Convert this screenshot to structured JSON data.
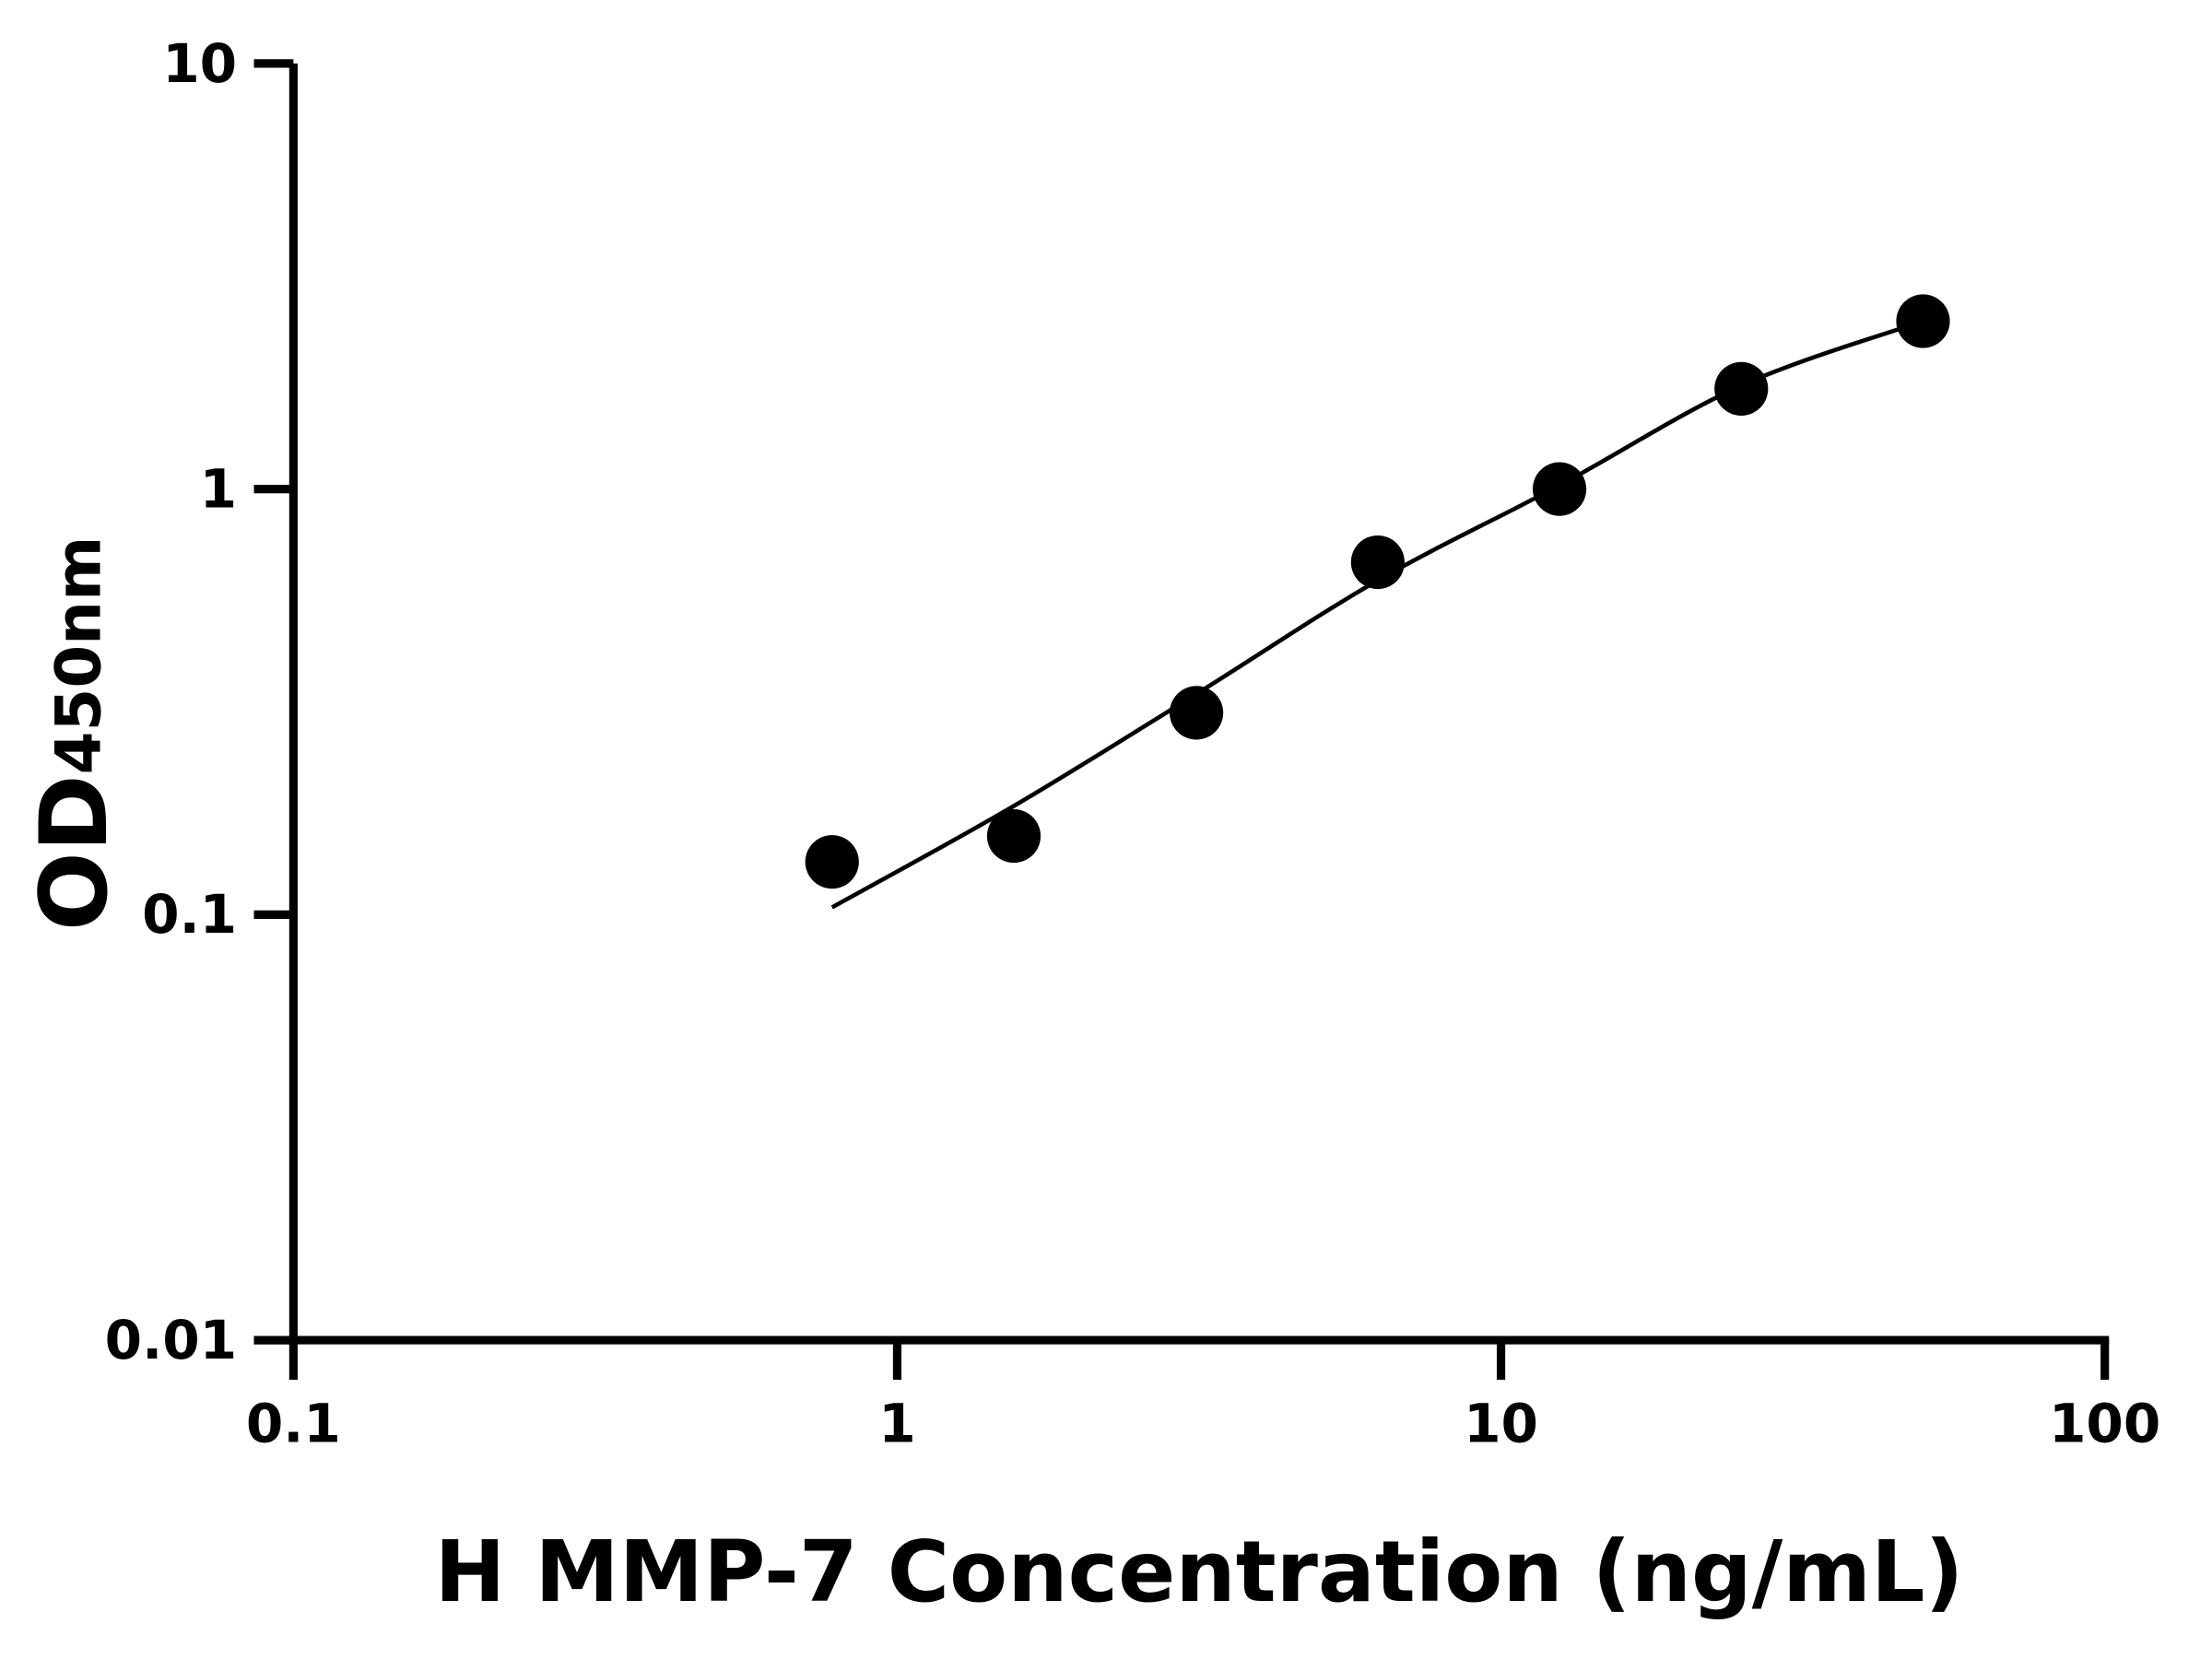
{
  "chart_data": {
    "type": "scatter",
    "title": "",
    "xlabel": "H MMP-7 Concentration (ng/mL)",
    "ylabel": "OD",
    "ylabel_subscript": "450nm",
    "x_scale": "log",
    "y_scale": "log",
    "xlim": [
      0.1,
      100
    ],
    "ylim": [
      0.01,
      10
    ],
    "x_ticks": [
      "0.1",
      "1",
      "10",
      "100"
    ],
    "y_ticks": [
      "0.01",
      "0.1",
      "1",
      "10"
    ],
    "grid": false,
    "legend": "none",
    "colors": {
      "points": "#000000",
      "curve": "#000000",
      "axes": "#000000"
    },
    "points": {
      "x": [
        0.78,
        1.56,
        3.13,
        6.25,
        12.5,
        25,
        50
      ],
      "y": [
        0.133,
        0.153,
        0.298,
        0.673,
        1.0,
        1.72,
        2.48
      ]
    },
    "fitted_curve": {
      "x": [
        0.78,
        1.56,
        3.13,
        6.25,
        12.5,
        25,
        50
      ],
      "y": [
        0.104,
        0.18,
        0.33,
        0.61,
        1.02,
        1.75,
        2.48
      ]
    }
  }
}
